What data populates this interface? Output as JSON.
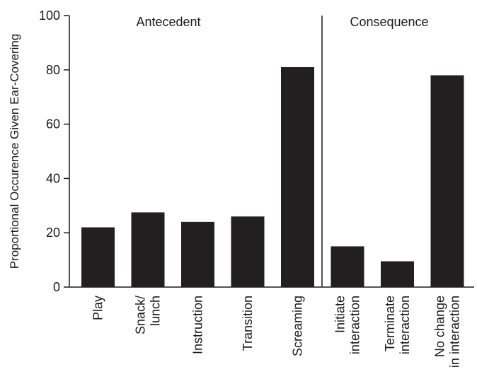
{
  "chart_data": {
    "type": "bar",
    "categories": [
      [
        "Play"
      ],
      [
        "Snack/",
        "lunch"
      ],
      [
        "Instruction"
      ],
      [
        "Transition"
      ],
      [
        "Screaming"
      ],
      [
        "Initiate",
        "interaction"
      ],
      [
        "Terminate",
        "interaction"
      ],
      [
        "No change",
        "in interaction"
      ]
    ],
    "values": [
      22,
      27.5,
      24,
      26,
      81,
      15,
      9.5,
      78
    ],
    "ylabel": "Proportional Occurence Given Ear-Covering",
    "xlabel": "",
    "ylim": [
      0,
      100
    ],
    "yticks": [
      0,
      20,
      40,
      60,
      80,
      100
    ],
    "groups": [
      {
        "label": "Antecedent",
        "categories": [
          0,
          1,
          2,
          3,
          4
        ]
      },
      {
        "label": "Consequence",
        "categories": [
          5,
          6,
          7
        ]
      }
    ],
    "bar_color": "#231f20",
    "grid": false,
    "legend": "none"
  }
}
